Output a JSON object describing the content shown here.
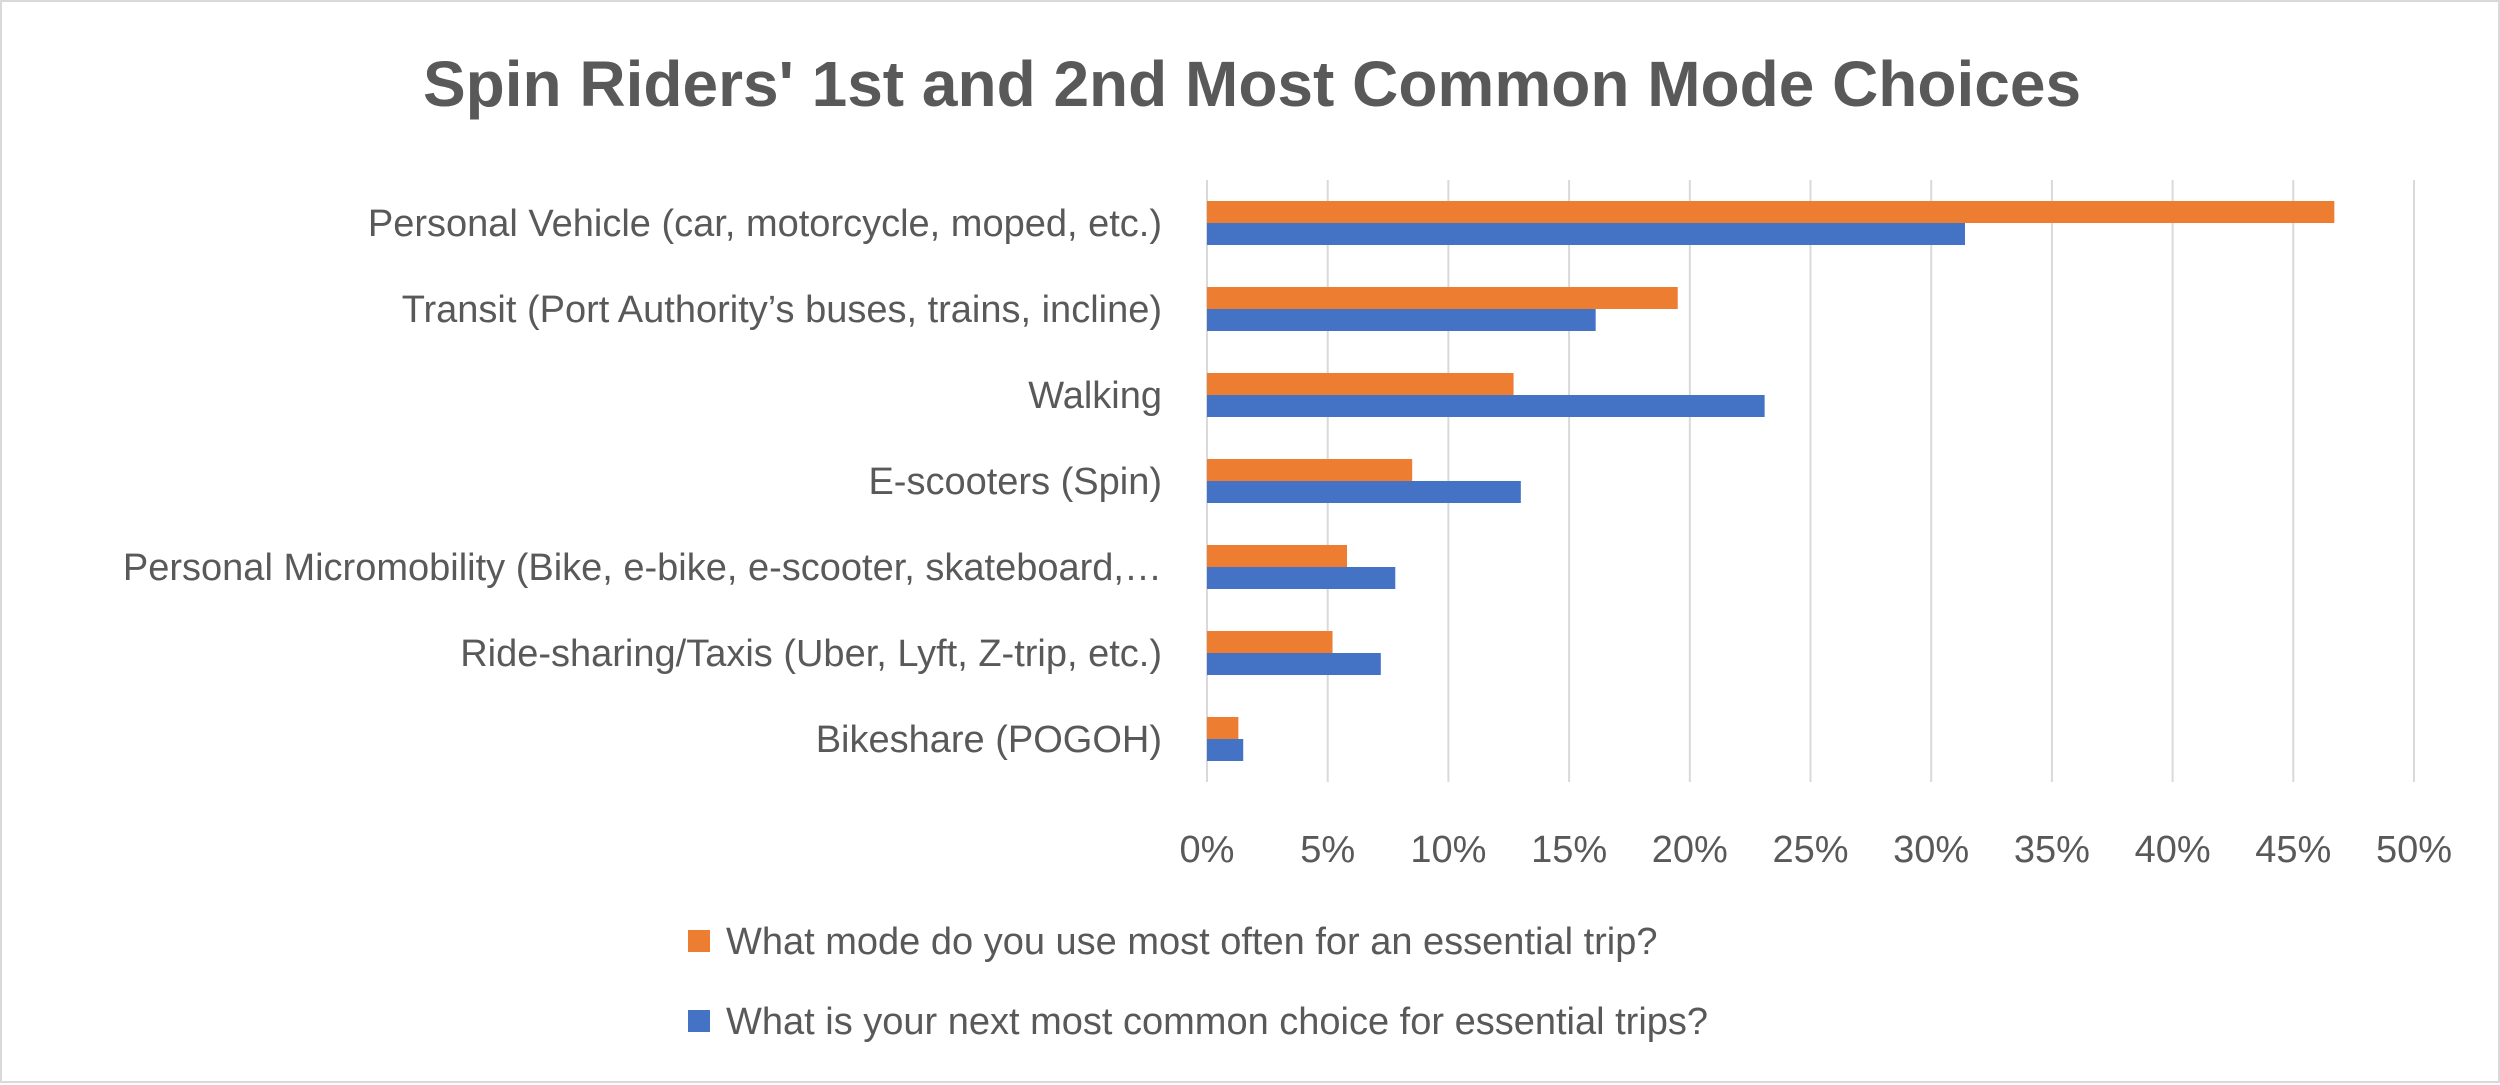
{
  "chart_data": {
    "type": "bar",
    "orientation": "horizontal",
    "title": "Spin Riders' 1st and 2nd Most Common Mode Choices",
    "categories": [
      "Personal Vehicle (car, motorcycle, moped, etc.)",
      "Transit (Port Authority’s buses, trains, incline)",
      "Walking",
      "E-scooters (Spin)",
      "Personal Micromobility (Bike, e-bike, e-scooter, skateboard,…",
      "Ride-sharing/Taxis (Uber, Lyft, Z-trip, etc.)",
      "Bikeshare (POGOH)"
    ],
    "series": [
      {
        "name": "What mode do you use most often for an essential trip?",
        "color": "#ed7d31",
        "values": [
          46.7,
          19.5,
          12.7,
          8.5,
          5.8,
          5.2,
          1.3
        ]
      },
      {
        "name": "What is your next most common choice for essential trips?",
        "color": "#4472c4",
        "values": [
          31.4,
          16.1,
          23.1,
          13.0,
          7.8,
          7.2,
          1.5
        ]
      }
    ],
    "xlim": [
      0,
      50
    ],
    "xticks": [
      0,
      5,
      10,
      15,
      20,
      25,
      30,
      35,
      40,
      45,
      50
    ],
    "tick_suffix": "%",
    "grid": true,
    "legend_position": "bottom"
  }
}
